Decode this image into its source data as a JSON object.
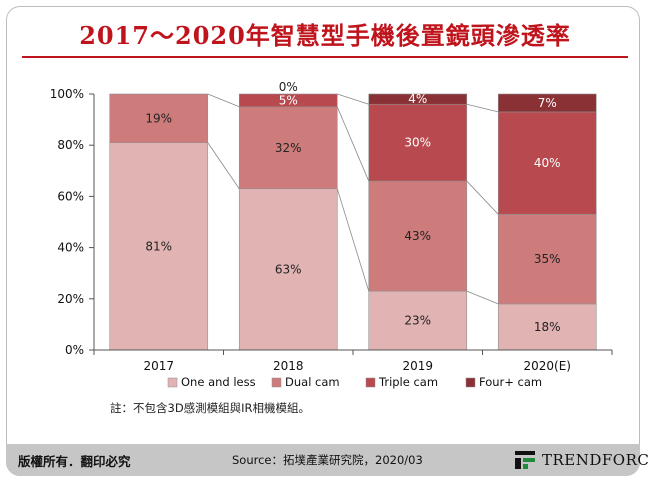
{
  "title": "2017～2020年智慧型手機後置鏡頭滲透率",
  "note": "註：不包含3D感測模組與IR相機模組。",
  "footer": {
    "copyright": "版權所有．翻印必究",
    "source": "Source：拓墣產業研究院，2020/03",
    "logo_text": "TRENDFORCE"
  },
  "colors": {
    "title": "#c0141c",
    "one_and_less": "#e1b3b3",
    "dual_cam": "#cd7b7b",
    "triple_cam": "#b84a4f",
    "four_plus_cam": "#8a3136"
  },
  "chart_data": {
    "type": "bar",
    "stacked": true,
    "categories": [
      "2017",
      "2018",
      "2019",
      "2020(E)"
    ],
    "ylim": [
      0,
      100
    ],
    "yticks": [
      "0%",
      "20%",
      "40%",
      "60%",
      "80%",
      "100%"
    ],
    "series": [
      {
        "name": "One and less",
        "values": [
          81,
          63,
          23,
          18
        ],
        "labels": [
          "81%",
          "63%",
          "23%",
          "18%"
        ],
        "color": "#e1b3b3"
      },
      {
        "name": "Dual cam",
        "values": [
          19,
          32,
          43,
          35
        ],
        "labels": [
          "19%",
          "32%",
          "43%",
          "35%"
        ],
        "color": "#cd7b7b"
      },
      {
        "name": "Triple cam",
        "values": [
          0,
          5,
          30,
          40
        ],
        "labels": [
          "",
          "5%",
          "30%",
          "40%"
        ],
        "color": "#b84a4f"
      },
      {
        "name": "Four+ cam",
        "values": [
          0,
          0,
          4,
          7
        ],
        "labels": [
          "",
          "0%",
          "4%",
          "7%"
        ],
        "color": "#8a3136"
      }
    ],
    "legend_position": "bottom",
    "grid": false
  }
}
